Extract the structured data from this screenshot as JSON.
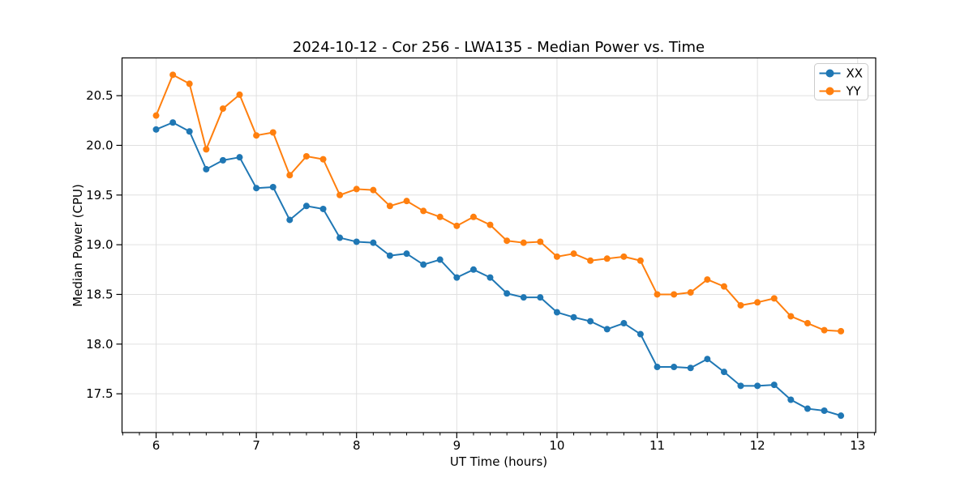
{
  "chart_data": {
    "type": "line",
    "title": "2024-10-12 - Cor 256 - LWA135 - Median Power vs. Time",
    "xlabel": "UT Time (hours)",
    "ylabel": "Median Power (CPU)",
    "xlim": [
      5.66,
      13.18
    ],
    "ylim": [
      17.11,
      20.88
    ],
    "xticks": [
      6,
      7,
      8,
      9,
      10,
      11,
      12,
      13
    ],
    "yticks": [
      17.5,
      18.0,
      18.5,
      19.0,
      19.5,
      20.0,
      20.5
    ],
    "minor_xtick_step": 0.16667,
    "grid": true,
    "grid_color": "#e0e0e0",
    "spine_color": "#000000",
    "legend_position": "upper right",
    "x": [
      6.0,
      6.167,
      6.333,
      6.5,
      6.667,
      6.833,
      7.0,
      7.167,
      7.333,
      7.5,
      7.667,
      7.833,
      8.0,
      8.167,
      8.333,
      8.5,
      8.667,
      8.833,
      9.0,
      9.167,
      9.333,
      9.5,
      9.667,
      9.833,
      10.0,
      10.167,
      10.333,
      10.5,
      10.667,
      10.833,
      11.0,
      11.167,
      11.333,
      11.5,
      11.667,
      11.833,
      12.0,
      12.167,
      12.333,
      12.5,
      12.667,
      12.833
    ],
    "series": [
      {
        "name": "XX",
        "color": "#1f77b4",
        "marker": "circle",
        "values": [
          20.16,
          20.23,
          20.14,
          19.76,
          19.85,
          19.88,
          19.57,
          19.58,
          19.25,
          19.39,
          19.36,
          19.07,
          19.03,
          19.02,
          18.89,
          18.91,
          18.8,
          18.85,
          18.67,
          18.75,
          18.67,
          18.51,
          18.47,
          18.47,
          18.32,
          18.27,
          18.23,
          18.15,
          18.21,
          18.1,
          17.77,
          17.77,
          17.76,
          17.85,
          17.72,
          17.58,
          17.58,
          17.59,
          17.44,
          17.35,
          17.33,
          17.28
        ]
      },
      {
        "name": "YY",
        "color": "#ff7f0e",
        "marker": "circle",
        "values": [
          20.3,
          20.71,
          20.62,
          19.96,
          20.37,
          20.51,
          20.1,
          20.13,
          19.7,
          19.89,
          19.86,
          19.5,
          19.56,
          19.55,
          19.39,
          19.44,
          19.34,
          19.28,
          19.19,
          19.28,
          19.2,
          19.04,
          19.02,
          19.03,
          18.88,
          18.91,
          18.84,
          18.86,
          18.88,
          18.84,
          18.5,
          18.5,
          18.52,
          18.65,
          18.58,
          18.39,
          18.42,
          18.46,
          18.28,
          18.21,
          18.14,
          18.13
        ]
      }
    ]
  }
}
